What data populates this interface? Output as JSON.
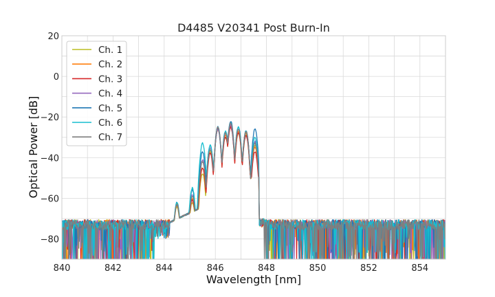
{
  "chart_data": {
    "type": "line",
    "title": "D4485 V20341 Post Burn-In",
    "xlabel": "Wavelength [nm]",
    "ylabel": "Optical Power [dB]",
    "xlim": [
      840,
      855
    ],
    "ylim": [
      -90,
      20
    ],
    "xticks": [
      840,
      842,
      844,
      846,
      848,
      850,
      852,
      854
    ],
    "yticks": [
      20,
      0,
      -20,
      -40,
      -60,
      -80
    ],
    "xtick_labels": [
      "840",
      "842",
      "844",
      "846",
      "848",
      "850",
      "852",
      "854"
    ],
    "ytick_labels": [
      "20",
      "0",
      "−20",
      "−40",
      "−60",
      "−80"
    ],
    "grid": true,
    "legend_position": "top-left",
    "series": [
      {
        "name": "Ch. 1",
        "color": "#bcbd22",
        "peaks": [
          [
            844.5,
            -64
          ],
          [
            845.1,
            -62
          ],
          [
            845.5,
            -48
          ],
          [
            845.8,
            -37
          ],
          [
            846.1,
            -26
          ],
          [
            846.4,
            -30
          ],
          [
            846.6,
            -25
          ],
          [
            846.9,
            -28
          ],
          [
            847.2,
            -29
          ],
          [
            847.55,
            -34
          ]
        ]
      },
      {
        "name": "Ch. 2",
        "color": "#ff7f0e",
        "peaks": [
          [
            844.5,
            -63
          ],
          [
            845.1,
            -60
          ],
          [
            845.5,
            -45
          ],
          [
            845.8,
            -36
          ],
          [
            846.1,
            -26
          ],
          [
            846.4,
            -29
          ],
          [
            846.6,
            -24
          ],
          [
            846.9,
            -27
          ],
          [
            847.2,
            -28
          ],
          [
            847.55,
            -35
          ]
        ]
      },
      {
        "name": "Ch. 3",
        "color": "#d62728",
        "peaks": [
          [
            844.5,
            -63
          ],
          [
            845.1,
            -61
          ],
          [
            845.5,
            -45
          ],
          [
            845.8,
            -38
          ],
          [
            846.1,
            -26
          ],
          [
            846.4,
            -30
          ],
          [
            846.6,
            -25
          ],
          [
            846.9,
            -28
          ],
          [
            847.2,
            -29
          ],
          [
            847.55,
            -37
          ]
        ]
      },
      {
        "name": "Ch. 4",
        "color": "#9467bd",
        "peaks": [
          [
            844.5,
            -63
          ],
          [
            845.1,
            -58
          ],
          [
            845.5,
            -41
          ],
          [
            845.8,
            -35
          ],
          [
            846.1,
            -26
          ],
          [
            846.4,
            -28
          ],
          [
            846.6,
            -24
          ],
          [
            846.9,
            -26
          ],
          [
            847.2,
            -27
          ],
          [
            847.55,
            -32
          ]
        ]
      },
      {
        "name": "Ch. 5",
        "color": "#1f77b4",
        "peaks": [
          [
            844.5,
            -62
          ],
          [
            845.1,
            -56
          ],
          [
            845.5,
            -37
          ],
          [
            845.8,
            -34
          ],
          [
            846.1,
            -25
          ],
          [
            846.4,
            -27
          ],
          [
            846.6,
            -22
          ],
          [
            846.9,
            -25
          ],
          [
            847.2,
            -27
          ],
          [
            847.55,
            -26
          ]
        ]
      },
      {
        "name": "Ch. 6",
        "color": "#17becf",
        "peaks": [
          [
            844.5,
            -62
          ],
          [
            845.1,
            -55
          ],
          [
            845.5,
            -33
          ],
          [
            845.8,
            -34
          ],
          [
            846.1,
            -25
          ],
          [
            846.4,
            -27
          ],
          [
            846.6,
            -23
          ],
          [
            846.9,
            -25
          ],
          [
            847.2,
            -27
          ],
          [
            847.55,
            -30
          ]
        ]
      },
      {
        "name": "Ch. 7",
        "color": "#7f7f7f",
        "peaks": [
          [
            844.5,
            -63
          ],
          [
            845.1,
            -59
          ],
          [
            845.5,
            -42
          ],
          [
            845.8,
            -36
          ],
          [
            846.1,
            -25
          ],
          [
            846.4,
            -28
          ],
          [
            846.6,
            -23
          ],
          [
            846.9,
            -26
          ],
          [
            847.2,
            -27
          ],
          [
            847.55,
            -33
          ]
        ]
      }
    ],
    "noise_floor": {
      "level": -73,
      "min": -90,
      "band_left": [
        840,
        844.2
      ],
      "band_right": [
        847.9,
        855
      ]
    }
  }
}
